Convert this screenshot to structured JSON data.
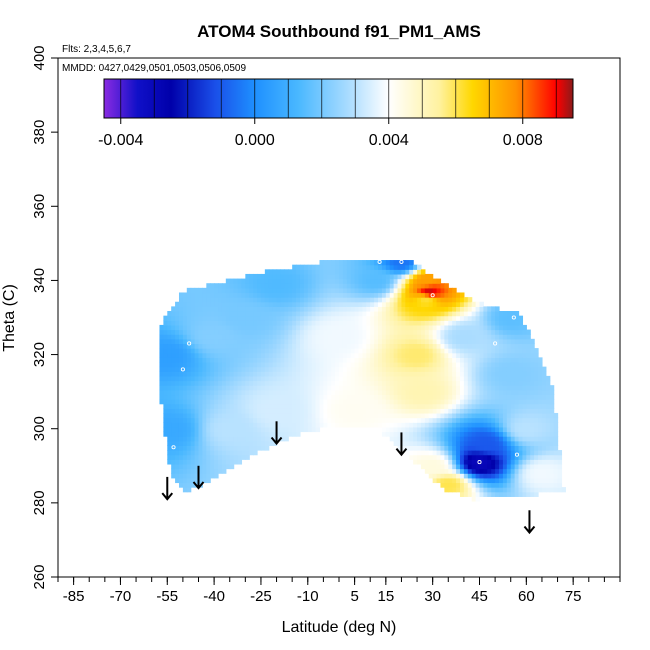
{
  "chart_data": {
    "type": "heatmap",
    "title": "ATOM4 Southbound f91_PM1_AMS",
    "subtitle_flights": "Flts: 2,3,4,5,6,7",
    "subtitle_dates": "MMDD: 0427,0429,0501,0503,0506,0509",
    "xlabel": "Latitude (deg N)",
    "ylabel": "Theta (C)",
    "xlim": [
      -90,
      90
    ],
    "ylim": [
      260,
      400
    ],
    "x_ticks": [
      -85,
      -70,
      -55,
      -40,
      -25,
      -10,
      5,
      15,
      30,
      45,
      60,
      75
    ],
    "x_tick_labels": [
      "-85",
      "-70",
      "-55",
      "-40",
      "-25",
      "-10",
      "5",
      "15",
      "30",
      "45",
      "60",
      "75"
    ],
    "y_ticks": [
      260,
      280,
      300,
      320,
      340,
      360,
      380,
      400
    ],
    "y_tick_labels": [
      "260",
      "280",
      "300",
      "320",
      "340",
      "360",
      "380",
      "400"
    ],
    "colorbar": {
      "range": [
        -0.0045,
        0.0095
      ],
      "ticks": [
        -0.004,
        0.0,
        0.004,
        0.008
      ],
      "tick_labels": [
        "-0.004",
        "0.000",
        "0.004",
        "0.008"
      ],
      "color_stops": [
        {
          "v": -0.0045,
          "c": "#8a2be2"
        },
        {
          "v": -0.0035,
          "c": "#1010c8"
        },
        {
          "v": -0.0025,
          "c": "#0000aa"
        },
        {
          "v": -0.0012,
          "c": "#1a4ee8"
        },
        {
          "v": 0.0,
          "c": "#1e90ff"
        },
        {
          "v": 0.0013,
          "c": "#4ab8ff"
        },
        {
          "v": 0.0028,
          "c": "#aadcff"
        },
        {
          "v": 0.004,
          "c": "#ffffff"
        },
        {
          "v": 0.0055,
          "c": "#fff2a0"
        },
        {
          "v": 0.0065,
          "c": "#ffd700"
        },
        {
          "v": 0.0078,
          "c": "#ff9000"
        },
        {
          "v": 0.009,
          "c": "#ff0000"
        },
        {
          "v": 0.0095,
          "c": "#8b1a1a"
        }
      ]
    },
    "field_region_boundary": [
      [
        -58,
        327
      ],
      [
        -55,
        331
      ],
      [
        -50,
        337
      ],
      [
        -35,
        340
      ],
      [
        -20,
        343
      ],
      [
        -5,
        345
      ],
      [
        10,
        346
      ],
      [
        22,
        346
      ],
      [
        30,
        341
      ],
      [
        40,
        336
      ],
      [
        48,
        333
      ],
      [
        58,
        331
      ],
      [
        63,
        322
      ],
      [
        68,
        312
      ],
      [
        70,
        300
      ],
      [
        72,
        283
      ],
      [
        58,
        282
      ],
      [
        43,
        281
      ],
      [
        33,
        284
      ],
      [
        22,
        293
      ],
      [
        12,
        300
      ],
      [
        0,
        301
      ],
      [
        -15,
        298
      ],
      [
        -30,
        292
      ],
      [
        -43,
        285
      ],
      [
        -50,
        283
      ],
      [
        -54,
        288
      ],
      [
        -56,
        300
      ],
      [
        -58,
        315
      ]
    ],
    "field_anchors": [
      {
        "lat": -55,
        "theta": 320,
        "value": 0.0005
      },
      {
        "lat": -54,
        "theta": 300,
        "value": 0.0008
      },
      {
        "lat": -40,
        "theta": 325,
        "value": 0.0022
      },
      {
        "lat": -30,
        "theta": 330,
        "value": 0.002
      },
      {
        "lat": -20,
        "theta": 339,
        "value": 0.0014
      },
      {
        "lat": -35,
        "theta": 300,
        "value": 0.003
      },
      {
        "lat": -20,
        "theta": 305,
        "value": 0.0034
      },
      {
        "lat": 0,
        "theta": 325,
        "value": 0.0038
      },
      {
        "lat": 5,
        "theta": 305,
        "value": 0.0042
      },
      {
        "lat": 12,
        "theta": 340,
        "value": 0.0015
      },
      {
        "lat": 20,
        "theta": 345,
        "value": -0.0005
      },
      {
        "lat": 25,
        "theta": 320,
        "value": 0.0058
      },
      {
        "lat": 27,
        "theta": 310,
        "value": 0.0052
      },
      {
        "lat": 28,
        "theta": 335,
        "value": 0.0062
      },
      {
        "lat": 28,
        "theta": 340,
        "value": 0.0075
      },
      {
        "lat": 29,
        "theta": 337,
        "value": 0.0092
      },
      {
        "lat": 30,
        "theta": 290,
        "value": 0.0045
      },
      {
        "lat": 35,
        "theta": 285,
        "value": 0.006
      },
      {
        "lat": 40,
        "theta": 325,
        "value": 0.0028
      },
      {
        "lat": 45,
        "theta": 291,
        "value": -0.003
      },
      {
        "lat": 47,
        "theta": 296,
        "value": -0.001
      },
      {
        "lat": 55,
        "theta": 315,
        "value": 0.0022
      },
      {
        "lat": 60,
        "theta": 300,
        "value": 0.003
      },
      {
        "lat": 65,
        "theta": 288,
        "value": 0.0038
      },
      {
        "lat": 55,
        "theta": 330,
        "value": 0.0016
      }
    ],
    "sample_points": [
      {
        "lat": -53,
        "theta": 295
      },
      {
        "lat": -48,
        "theta": 323
      },
      {
        "lat": -50,
        "theta": 316
      },
      {
        "lat": 13,
        "theta": 345
      },
      {
        "lat": 20,
        "theta": 345
      },
      {
        "lat": 30,
        "theta": 336
      },
      {
        "lat": 47,
        "theta": 335
      },
      {
        "lat": 50,
        "theta": 323
      },
      {
        "lat": 56,
        "theta": 330
      },
      {
        "lat": 60,
        "theta": 333
      },
      {
        "lat": 45,
        "theta": 291
      },
      {
        "lat": 57,
        "theta": 293
      }
    ],
    "arrows": [
      {
        "lat": -55,
        "theta_top": 287,
        "theta_bottom": 281
      },
      {
        "lat": -45,
        "theta_top": 290,
        "theta_bottom": 284
      },
      {
        "lat": -20,
        "theta_top": 302,
        "theta_bottom": 296
      },
      {
        "lat": 20,
        "theta_top": 299,
        "theta_bottom": 293
      },
      {
        "lat": 61,
        "theta_top": 278,
        "theta_bottom": 272
      }
    ]
  }
}
